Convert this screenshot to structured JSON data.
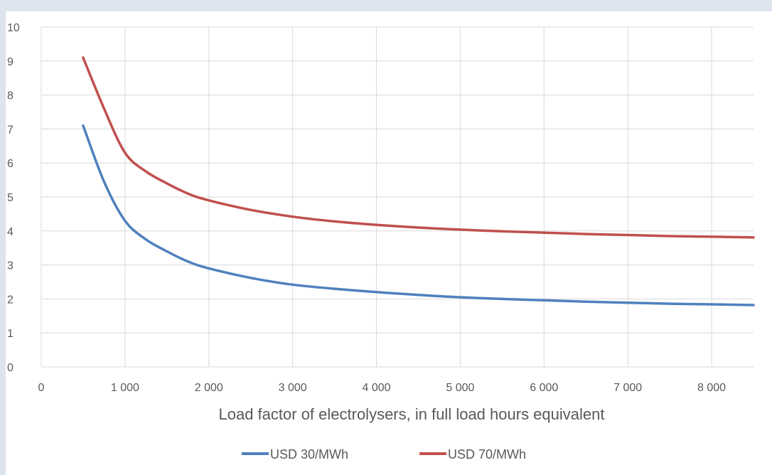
{
  "chart_data": {
    "type": "line",
    "title": "",
    "xlabel": "Load factor of electrolysers, in full load hours equivalent",
    "ylabel": "",
    "xlim": [
      0,
      8500
    ],
    "ylim": [
      0,
      10
    ],
    "x_ticks": [
      0,
      1000,
      2000,
      3000,
      4000,
      5000,
      6000,
      7000,
      8000
    ],
    "x_tick_labels": [
      "0",
      "1 000",
      "2 000",
      "3 000",
      "4 000",
      "5 000",
      "6 000",
      "7 000",
      "8 000"
    ],
    "y_ticks": [
      0,
      1,
      2,
      3,
      4,
      5,
      6,
      7,
      8,
      9,
      10
    ],
    "y_tick_labels": [
      "0",
      "1",
      "2",
      "3",
      "4",
      "5",
      "6",
      "7",
      "8",
      "9",
      "10"
    ],
    "grid": true,
    "legend_position": "bottom",
    "x": [
      500,
      750,
      1000,
      1250,
      1500,
      1750,
      2000,
      2500,
      3000,
      3500,
      4000,
      4500,
      5000,
      5500,
      6000,
      6500,
      7000,
      7500,
      8000,
      8500
    ],
    "series": [
      {
        "name": "USD 30/MWh",
        "color": "#4f81bd",
        "values": [
          7.1,
          5.45,
          4.3,
          3.75,
          3.4,
          3.1,
          2.9,
          2.62,
          2.42,
          2.3,
          2.2,
          2.12,
          2.05,
          2.0,
          1.96,
          1.92,
          1.89,
          1.86,
          1.84,
          1.82
        ]
      },
      {
        "name": "USD 70/MWh",
        "color": "#c0504d",
        "values": [
          9.1,
          7.6,
          6.3,
          5.75,
          5.4,
          5.1,
          4.9,
          4.62,
          4.42,
          4.28,
          4.18,
          4.1,
          4.04,
          3.99,
          3.95,
          3.91,
          3.88,
          3.85,
          3.83,
          3.81
        ]
      }
    ]
  }
}
